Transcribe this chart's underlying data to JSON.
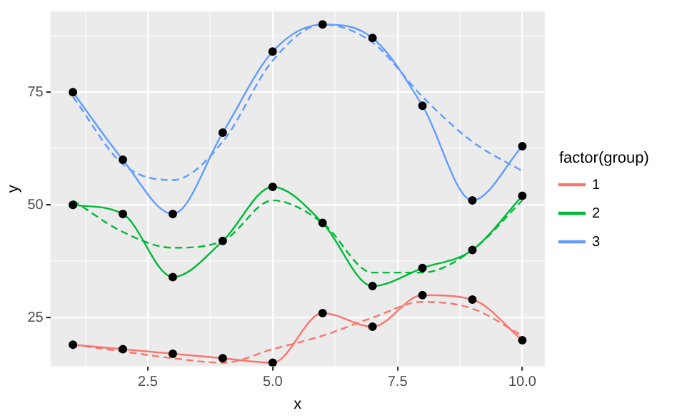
{
  "chart_data": {
    "type": "line",
    "xlabel": "x",
    "ylabel": "y",
    "legend_title": "factor(group)",
    "legend": "right",
    "grid": true,
    "x": [
      1,
      2,
      3,
      4,
      5,
      6,
      7,
      8,
      9,
      10
    ],
    "xlim": [
      0.55,
      10.45
    ],
    "ylim": [
      14.2,
      92.9
    ],
    "xticks": [
      {
        "value": 1.25,
        "label": null
      },
      {
        "value": 2.5,
        "label": "2.5"
      },
      {
        "value": 3.75,
        "label": null
      },
      {
        "value": 5,
        "label": "5.0"
      },
      {
        "value": 6.25,
        "label": null
      },
      {
        "value": 7.5,
        "label": "7.5"
      },
      {
        "value": 8.75,
        "label": null
      },
      {
        "value": 10,
        "label": "10.0"
      }
    ],
    "yticks": [
      25,
      {
        "value": 37.5,
        "label": null
      },
      50,
      {
        "value": 62.5,
        "label": null
      },
      75,
      {
        "value": 87.5,
        "label": null
      }
    ],
    "series": [
      {
        "name": "1",
        "type": "line",
        "color": "#f8766d",
        "values": [
          19,
          18,
          17,
          16,
          15,
          26,
          23,
          30,
          29,
          20
        ]
      },
      {
        "name": "2",
        "type": "line",
        "color": "#00ba38",
        "values": [
          50,
          48,
          34,
          42,
          54,
          46,
          32,
          36,
          40,
          52
        ]
      },
      {
        "name": "3",
        "type": "line",
        "color": "#619cff",
        "values": [
          75,
          60,
          48,
          66,
          84,
          90,
          87,
          72,
          51,
          63
        ]
      },
      {
        "type": "line",
        "line_style": "dashed",
        "color": "#f8766d",
        "values": [
          19,
          17.5,
          16,
          15,
          18,
          21,
          25,
          28.5,
          27,
          21
        ]
      },
      {
        "type": "line",
        "line_style": "dashed",
        "color": "#00ba38",
        "values": [
          51,
          44,
          40.5,
          42,
          51,
          46,
          35,
          35,
          40,
          51
        ]
      },
      {
        "type": "line",
        "line_style": "dashed",
        "color": "#619cff",
        "values": [
          74,
          59,
          55.5,
          64,
          82,
          90,
          86,
          74,
          64,
          57.5
        ]
      },
      {
        "type": "scatter",
        "marker": "circle",
        "color": "#000000",
        "values": [
          19,
          18,
          17,
          16,
          15,
          26,
          23,
          30,
          29,
          20
        ]
      },
      {
        "type": "scatter",
        "marker": "circle",
        "color": "#000000",
        "values": [
          50,
          48,
          34,
          42,
          54,
          46,
          32,
          36,
          40,
          52
        ]
      },
      {
        "type": "scatter",
        "marker": "circle",
        "color": "#000000",
        "values": [
          75,
          60,
          48,
          66,
          84,
          90,
          87,
          72,
          51,
          63
        ]
      }
    ]
  }
}
